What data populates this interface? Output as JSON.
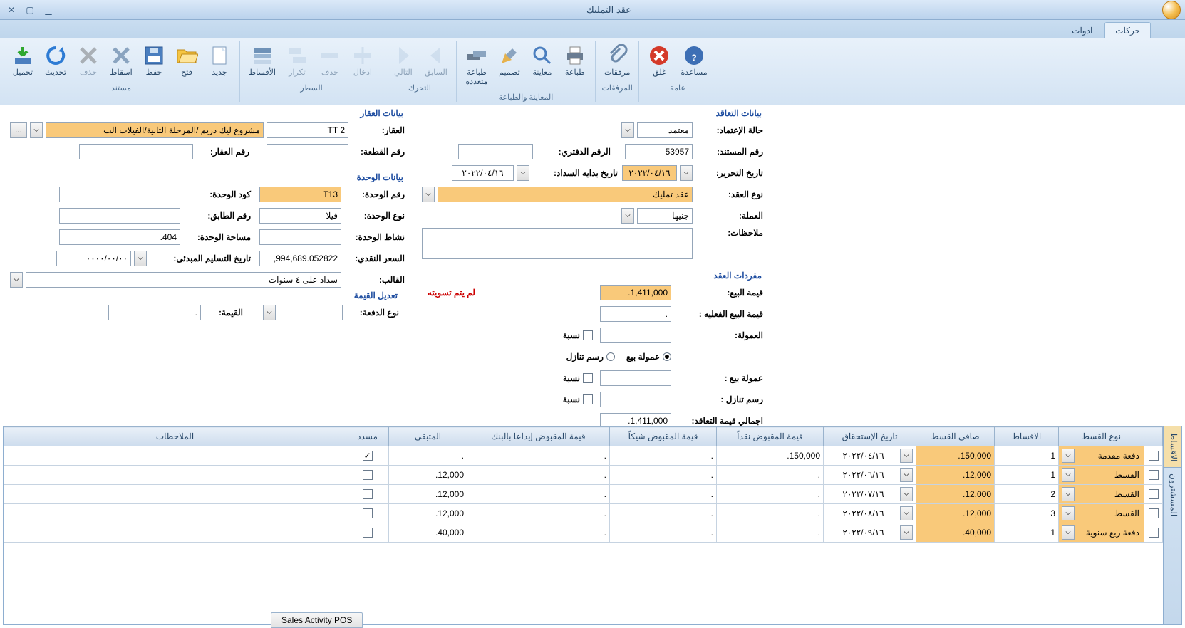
{
  "window": {
    "title": "عقد التمليك"
  },
  "tabs": {
    "t0": "حركات",
    "t1": "ادوات"
  },
  "ribbon": {
    "g_doc": {
      "cap": "مستند",
      "new": "جديد",
      "open": "فتح",
      "save": "حفظ",
      "drop": "اسقاط",
      "delete": "حذف",
      "refresh": "تحديث",
      "load": "تحميل"
    },
    "g_row": {
      "cap": "السطر",
      "insert": "ادخال",
      "delrow": "حذف",
      "repeat": "تكرار",
      "install": "الأقساط"
    },
    "g_nav": {
      "cap": "التحرك",
      "prev": "السابق",
      "next": "التالي"
    },
    "g_print": {
      "cap": "المعاينة والطباعة",
      "print": "طباعة",
      "preview": "معاينة",
      "design": "تصميم",
      "multi": "طباعة\nمتعددة"
    },
    "g_att": {
      "cap": "المرفقات",
      "att": "مرفقات"
    },
    "g_gen": {
      "cap": "عامة",
      "help": "مساعدة",
      "close": "غلق"
    }
  },
  "contract": {
    "legend": "بيانات التعاقد",
    "status_l": "حالة الإعتماد:",
    "status_v": "معتمد",
    "docno_l": "رقم المستند:",
    "docno_v": "53957",
    "bookno_l": "الرقم الدفتري:",
    "bookno_v": "",
    "editdate_l": "تاريخ التحرير:",
    "editdate_v": "٢٠٢٢/٠٤/١٦",
    "paystart_l": "تاريخ بدايه السداد:",
    "paystart_v": "٢٠٢٢/٠٤/١٦",
    "ctype_l": "نوع العقد:",
    "ctype_v": "عقد تمليك",
    "curr_l": "العملة:",
    "curr_v": "جنيها",
    "notes_l": "ملاحظات:",
    "notes_v": ""
  },
  "vocab": {
    "legend": "مفردات العقد",
    "sale_l": "قيمة البيع:",
    "sale_v": "1,411,000.",
    "unsettled": "لم يتم تسويته",
    "actual_l": "قيمة البيع الفعليه :",
    "actual_v": ".",
    "comm_l": "العمولة:",
    "comm_v": "",
    "pct": "نسبة",
    "salecomm": "عمولة بيع",
    "disc": "رسم تنازل",
    "salecomm2_l": "عمولة بيع :",
    "disc2_l": "رسم تنازل :",
    "total_l": "اجمالي قيمة التعاقد:",
    "total_v": "1,411,000."
  },
  "prop": {
    "legend": "بيانات العقار",
    "prop_l": "العقار:",
    "prop_code": "TT 2",
    "prop_name": "مشروع ليك دريم /المرحلة الثانية/الفيلات الت",
    "plot_l": "رقم القطعة:",
    "plot_v": "",
    "propno_l": "رقم العقار:",
    "propno_v": ""
  },
  "unit": {
    "legend": "بيانات الوحدة",
    "unitno_l": "رقم الوحدة:",
    "unitno_v": "T13",
    "unitcode_l": "كود الوحدة:",
    "unitcode_v": "",
    "utype_l": "نوع الوحدة:",
    "utype_v": "فيلا",
    "floor_l": "رقم الطابق:",
    "floor_v": "",
    "activity_l": "نشاط الوحدة:",
    "activity_v": "",
    "area_l": "مساحة الوحدة:",
    "area_v": "404.",
    "cash_l": "السعر النقدي:",
    "cash_v": "994,689.052822,",
    "deliv_l": "تاريخ التسليم المبدئى:",
    "deliv_v": "٠٠٠٠/٠٠/٠٠",
    "tmpl_l": "القالب:",
    "tmpl_v": "سداد على ٤ سنوات"
  },
  "valadj": {
    "legend": "تعديل القيمة",
    "ptype_l": "نوع الدفعة:",
    "ptype_v": "",
    "val_l": "القيمة:",
    "val_v": "."
  },
  "grid": {
    "sidetabs": {
      "t0": "الاقساط",
      "t1": "المسشترون"
    },
    "hdr": {
      "sel": "",
      "type": "نوع القسط",
      "inst": "الاقساط",
      "net": "صافي القسط",
      "due": "تاريخ الإستحقاق",
      "cash": "قيمة المقبوض نقداً",
      "chk": "قيمة المقبوض شيكاً",
      "bank": "قيمة المقبوض إيداعا بالبنك",
      "rem": "المتبقي",
      "paid": "مسدد",
      "notes": "الملاحظات"
    },
    "rows": [
      {
        "type": "دفعة مقدمة",
        "inst": "1",
        "net": "150,000.",
        "due": "٢٠٢٢/٠٤/١٦",
        "cash": "150,000.",
        "chk": ".",
        "bank": ".",
        "rem": ".",
        "paid": true
      },
      {
        "type": "القسط",
        "inst": "1",
        "net": "12,000.",
        "due": "٢٠٢٢/٠٦/١٦",
        "cash": ".",
        "chk": ".",
        "bank": ".",
        "rem": "12,000.",
        "paid": false
      },
      {
        "type": "القسط",
        "inst": "2",
        "net": "12,000.",
        "due": "٢٠٢٢/٠٧/١٦",
        "cash": ".",
        "chk": ".",
        "bank": ".",
        "rem": "12,000.",
        "paid": false
      },
      {
        "type": "القسط",
        "inst": "3",
        "net": "12,000.",
        "due": "٢٠٢٢/٠٨/١٦",
        "cash": ".",
        "chk": ".",
        "bank": ".",
        "rem": "12,000.",
        "paid": false
      },
      {
        "type": "دفعة ربع سنوية",
        "inst": "1",
        "net": "40,000.",
        "due": "٢٠٢٢/٠٩/١٦",
        "cash": ".",
        "chk": ".",
        "bank": ".",
        "rem": "40,000.",
        "paid": false
      }
    ]
  },
  "footer": {
    "sales": "Sales Activity POS"
  }
}
